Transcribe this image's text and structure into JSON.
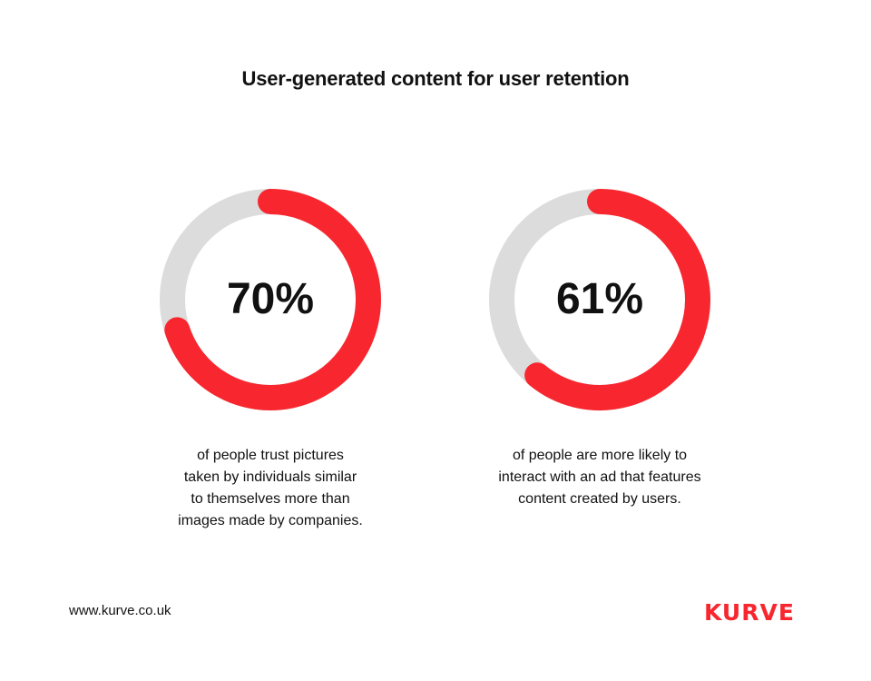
{
  "title": "User-generated content for user retention",
  "colors": {
    "accent": "#f8272f",
    "track": "#dcdcdc",
    "text": "#111111"
  },
  "chart_data": [
    {
      "type": "pie",
      "value": 70,
      "max": 100,
      "label": "70%",
      "description": "of people trust pictures taken by individuals similar to themselves more than images made by companies.",
      "description_lines": [
        "of people trust pictures",
        "taken by individuals similar",
        "to themselves more than",
        "images made by companies."
      ]
    },
    {
      "type": "pie",
      "value": 61,
      "max": 100,
      "label": "61%",
      "description": "of people are more likely to interact with an ad that features content created by users.",
      "description_lines": [
        "of people are more likely to",
        "interact with an ad that features",
        "content created by users."
      ]
    }
  ],
  "footer": {
    "url": "www.kurve.co.uk",
    "logo": "KURVE"
  }
}
